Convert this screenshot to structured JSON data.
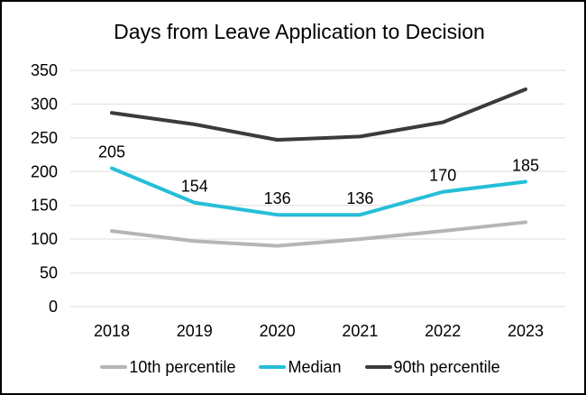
{
  "frame": {
    "background": "#ffffff",
    "border_color": "#000000"
  },
  "chart_data": {
    "type": "line",
    "title": "Days from Leave Application to Decision",
    "categories": [
      "2018",
      "2019",
      "2020",
      "2021",
      "2022",
      "2023"
    ],
    "series": [
      {
        "name": "10th percentile",
        "color": "#b5b5b5",
        "values": [
          112,
          97,
          90,
          100,
          112,
          125
        ],
        "labeled": false
      },
      {
        "name": "Median",
        "color": "#26bed8",
        "values": [
          205,
          154,
          136,
          136,
          170,
          185
        ],
        "labeled": true
      },
      {
        "name": "90th percentile",
        "color": "#3b3b3b",
        "values": [
          287,
          270,
          247,
          252,
          273,
          322
        ],
        "labeled": false
      }
    ],
    "data_labels_median": [
      "205",
      "154",
      "136",
      "136",
      "170",
      "185"
    ],
    "ylim": [
      0,
      350
    ],
    "yticks": [
      0,
      50,
      100,
      150,
      200,
      250,
      300,
      350
    ],
    "xlabel": "",
    "ylabel": "",
    "grid": "horizontal",
    "grid_color": "#e8e8e8",
    "text_color": "#000000",
    "legend_position": "bottom"
  }
}
